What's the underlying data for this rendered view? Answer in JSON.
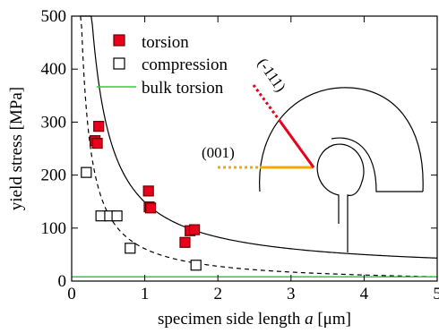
{
  "chart_data": {
    "type": "scatter",
    "xlabel_prefix": "specimen side length ",
    "xlabel_var": "a",
    "xlabel_unit": " [μm]",
    "ylabel": "yield stress [MPa]",
    "xlim": [
      0,
      5
    ],
    "ylim": [
      0,
      500
    ],
    "xticks": [
      0,
      1,
      2,
      3,
      4,
      5
    ],
    "yticks": [
      0,
      100,
      200,
      300,
      400,
      500
    ],
    "grid": false,
    "legend_position": "top",
    "series": [
      {
        "name": "torsion",
        "marker": "filled-square",
        "color": "#e8001c",
        "x": [
          0.32,
          0.35,
          0.37,
          1.05,
          1.06,
          1.08,
          1.55,
          1.62,
          1.68
        ],
        "y": [
          265,
          260,
          292,
          170,
          140,
          138,
          73,
          95,
          97
        ]
      },
      {
        "name": "compression",
        "marker": "open-square",
        "color": "#000000",
        "x": [
          0.2,
          0.4,
          0.52,
          0.62,
          0.8,
          1.7
        ],
        "y": [
          205,
          123,
          123,
          123,
          62,
          30
        ]
      },
      {
        "name": "bulk torsion",
        "marker": "line",
        "color": "#33cc33",
        "y": [
          8
        ]
      }
    ],
    "fits": [
      {
        "style": "solid",
        "color": "#000000",
        "a": 132,
        "b": 17,
        "x_start": 0.12
      },
      {
        "style": "dashed",
        "color": "#000000",
        "a": 66,
        "b": -5,
        "x_start": 0.12
      }
    ],
    "annotations": [
      {
        "text": "(001)",
        "color": "#f5a800"
      },
      {
        "text": "(-111)",
        "color": "#e8001c"
      }
    ]
  }
}
